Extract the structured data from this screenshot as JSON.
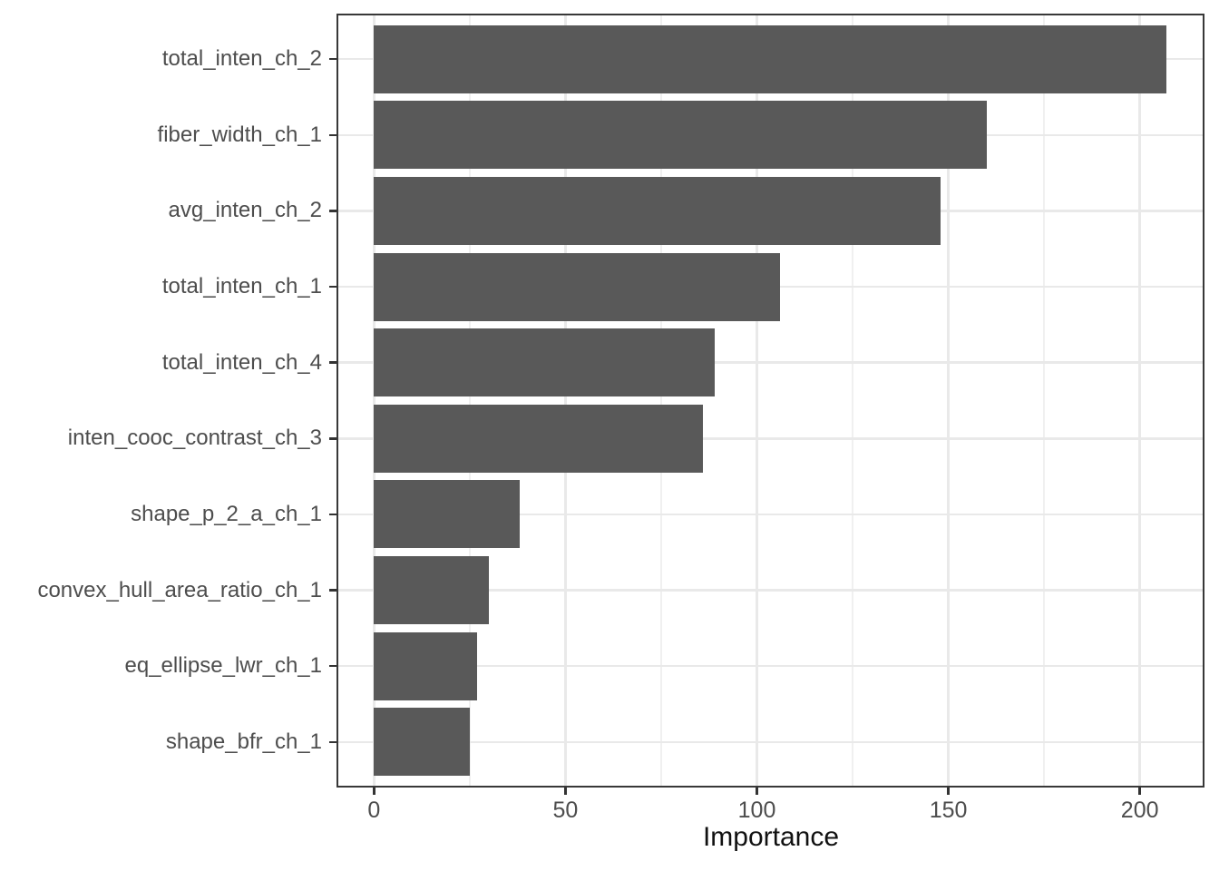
{
  "chart_data": {
    "type": "bar",
    "orientation": "horizontal",
    "title": "",
    "xlabel": "Importance",
    "ylabel": "",
    "categories": [
      "total_inten_ch_2",
      "fiber_width_ch_1",
      "avg_inten_ch_2",
      "total_inten_ch_1",
      "total_inten_ch_4",
      "inten_cooc_contrast_ch_3",
      "shape_p_2_a_ch_1",
      "convex_hull_area_ratio_ch_1",
      "eq_ellipse_lwr_ch_1",
      "shape_bfr_ch_1"
    ],
    "values": [
      207,
      160,
      148,
      106,
      89,
      86,
      38,
      30,
      27,
      25
    ],
    "xlim": [
      -9.8,
      216.9
    ],
    "x_breaks": [
      0,
      50,
      100,
      150,
      200
    ],
    "x_minor_breaks": [
      25,
      75,
      125,
      175
    ],
    "grid": "on",
    "legend": "none"
  },
  "colors": {
    "bar": "#595959",
    "grid_major": "#e9e9e9",
    "grid_minor": "#f0f0f0",
    "panel_border": "#383838",
    "tick": "#333333",
    "axis_text": "#4d4d4d",
    "axis_title": "#111111",
    "background": "#ffffff"
  }
}
